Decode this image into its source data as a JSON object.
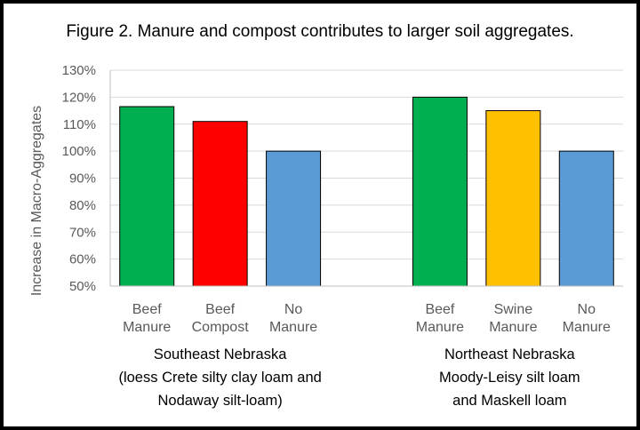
{
  "chart_data": {
    "type": "bar",
    "title": "Figure 2.  Manure and compost contributes to larger soil aggregates.",
    "ylabel": "Increase in Macro-Aggregates",
    "ylim": [
      0.5,
      1.3
    ],
    "ytick_step": 0.1,
    "ytick_labels": [
      "50%",
      "60%",
      "70%",
      "80%",
      "90%",
      "100%",
      "110%",
      "120%",
      "130%"
    ],
    "grid": true,
    "legend": "none",
    "groups": [
      {
        "label_lines": [
          "Southeast Nebraska",
          "(loess Crete silty clay loam and",
          "Nodaway silt-loam)"
        ],
        "bars": [
          {
            "label_lines": [
              "Beef",
              "Manure"
            ],
            "value": 1.165,
            "color": "#00B050"
          },
          {
            "label_lines": [
              "Beef",
              "Compost"
            ],
            "value": 1.11,
            "color": "#FF0000"
          },
          {
            "label_lines": [
              "No",
              "Manure"
            ],
            "value": 1.0,
            "color": "#5B9BD5"
          }
        ]
      },
      {
        "label_lines": [
          "Northeast Nebraska",
          "Moody-Leisy silt loam",
          "and Maskell loam"
        ],
        "bars": [
          {
            "label_lines": [
              "Beef",
              "Manure"
            ],
            "value": 1.2,
            "color": "#00B050"
          },
          {
            "label_lines": [
              "Swine",
              "Manure"
            ],
            "value": 1.15,
            "color": "#FFC000"
          },
          {
            "label_lines": [
              "No",
              "Manure"
            ],
            "value": 1.0,
            "color": "#5B9BD5"
          }
        ]
      }
    ]
  }
}
